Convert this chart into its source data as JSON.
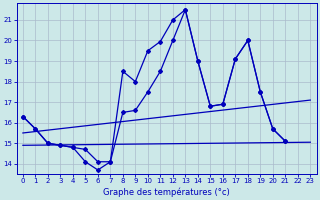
{
  "title": "Graphe des températures (°c)",
  "bg_color": "#cce8e8",
  "grid_color": "#aabbcc",
  "line_color": "#0000bb",
  "xlim": [
    -0.5,
    23.5
  ],
  "ylim": [
    13.5,
    21.8
  ],
  "yticks": [
    14,
    15,
    16,
    17,
    18,
    19,
    20,
    21
  ],
  "xticks": [
    0,
    1,
    2,
    3,
    4,
    5,
    6,
    7,
    8,
    9,
    10,
    11,
    12,
    13,
    14,
    15,
    16,
    17,
    18,
    19,
    20,
    21,
    22,
    23
  ],
  "series": [
    {
      "x": [
        0,
        1,
        2,
        3,
        4,
        5,
        6,
        7,
        8,
        9,
        10,
        11,
        12,
        13,
        14,
        15,
        16,
        17,
        18,
        19,
        20,
        21,
        22,
        23
      ],
      "y": [
        16.3,
        15.7,
        15.0,
        14.9,
        14.8,
        14.1,
        13.7,
        14.1,
        18.5,
        18.0,
        19.5,
        19.95,
        21.0,
        21.5,
        19.0,
        16.8,
        16.9,
        19.1,
        20.0,
        17.5,
        15.7,
        15.1,
        null,
        null
      ],
      "marker": true
    },
    {
      "x": [
        0,
        1,
        2,
        3,
        4,
        5,
        6,
        7,
        8,
        9,
        10,
        11,
        12,
        13,
        14,
        15,
        16,
        17,
        18,
        19,
        20,
        21,
        22,
        23
      ],
      "y": [
        16.3,
        15.7,
        15.0,
        14.9,
        14.8,
        14.7,
        14.1,
        14.1,
        16.5,
        16.6,
        17.5,
        18.5,
        20.0,
        21.5,
        19.0,
        16.8,
        16.9,
        19.1,
        20.0,
        17.5,
        15.7,
        15.1,
        null,
        null
      ],
      "marker": true
    },
    {
      "x": [
        0,
        23
      ],
      "y": [
        15.5,
        17.1
      ],
      "marker": false
    },
    {
      "x": [
        0,
        23
      ],
      "y": [
        14.9,
        15.05
      ],
      "marker": false
    }
  ]
}
